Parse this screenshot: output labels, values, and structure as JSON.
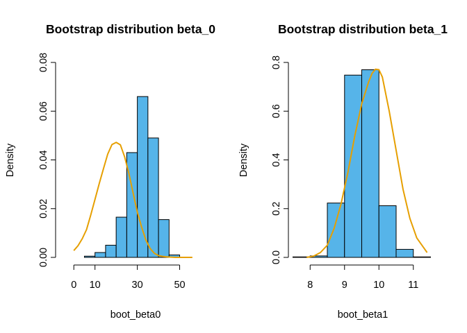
{
  "chart_data": [
    {
      "type": "bar",
      "title": "Bootstrap distribution beta_0",
      "xlabel": "boot_beta0",
      "ylabel": "Density",
      "xlim": [
        -5,
        60
      ],
      "ylim": [
        0,
        0.08
      ],
      "x_ticks": [
        0,
        10,
        30,
        50
      ],
      "x_tick_labels": [
        "0",
        "10",
        "30",
        "50"
      ],
      "y_ticks": [
        0.0,
        0.02,
        0.04,
        0.06,
        0.08
      ],
      "y_tick_labels": [
        "0.00",
        "0.02",
        "0.04",
        "0.06",
        "0.08"
      ],
      "bins": [
        {
          "x0": 5,
          "x1": 10,
          "density": 0.0005
        },
        {
          "x0": 10,
          "x1": 15,
          "density": 0.002
        },
        {
          "x0": 15,
          "x1": 20,
          "density": 0.005
        },
        {
          "x0": 20,
          "x1": 25,
          "density": 0.0165
        },
        {
          "x0": 25,
          "x1": 30,
          "density": 0.043
        },
        {
          "x0": 30,
          "x1": 35,
          "density": 0.066
        },
        {
          "x0": 35,
          "x1": 40,
          "density": 0.049
        },
        {
          "x0": 40,
          "x1": 45,
          "density": 0.0155
        },
        {
          "x0": 45,
          "x1": 50,
          "density": 0.001
        }
      ],
      "curve": {
        "x": [
          0,
          2,
          4,
          6,
          8,
          10,
          12,
          14,
          16,
          18,
          20,
          22,
          24,
          26,
          28,
          30,
          32,
          34,
          36,
          38,
          40,
          42,
          44,
          46,
          48,
          50,
          52,
          54,
          56
        ],
        "y": [
          0.0028,
          0.0048,
          0.0077,
          0.0114,
          0.0174,
          0.0238,
          0.0303,
          0.0364,
          0.0424,
          0.0463,
          0.0472,
          0.0462,
          0.0413,
          0.0345,
          0.0265,
          0.0186,
          0.0125,
          0.0072,
          0.0037,
          0.0017,
          0.0007,
          0.0004,
          0.0002,
          0.0001,
          0.0,
          0.0,
          0.0,
          0.0,
          0.0
        ]
      }
    },
    {
      "type": "bar",
      "title": "Bootstrap distribution beta_1",
      "xlabel": "boot_beta1",
      "ylabel": "Density",
      "xlim": [
        7.55,
        11.55
      ],
      "ylim": [
        0,
        0.8
      ],
      "x_ticks": [
        8,
        9,
        10,
        11
      ],
      "x_tick_labels": [
        "8",
        "9",
        "10",
        "11"
      ],
      "y_ticks": [
        0.0,
        0.2,
        0.4,
        0.6,
        0.8
      ],
      "y_tick_labels": [
        "0.0",
        "0.2",
        "0.4",
        "0.6",
        "0.8"
      ],
      "bins": [
        {
          "x0": 7.5,
          "x1": 8.0,
          "density": 0.002
        },
        {
          "x0": 8.0,
          "x1": 8.5,
          "density": 0.006
        },
        {
          "x0": 8.5,
          "x1": 9.0,
          "density": 0.223
        },
        {
          "x0": 9.0,
          "x1": 9.5,
          "density": 0.748
        },
        {
          "x0": 9.5,
          "x1": 10.0,
          "density": 0.77
        },
        {
          "x0": 10.0,
          "x1": 10.5,
          "density": 0.212
        },
        {
          "x0": 10.5,
          "x1": 11.0,
          "density": 0.033
        },
        {
          "x0": 11.0,
          "x1": 11.5,
          "density": 0.002
        }
      ],
      "curve": {
        "x": [
          7.9,
          8.1,
          8.3,
          8.5,
          8.7,
          8.9,
          9.1,
          9.3,
          9.5,
          9.7,
          9.8,
          9.9,
          10.0,
          10.1,
          10.3,
          10.5,
          10.7,
          10.9,
          11.1,
          11.3,
          11.4
        ],
        "y": [
          0.0,
          0.005,
          0.02,
          0.05,
          0.12,
          0.22,
          0.35,
          0.5,
          0.63,
          0.72,
          0.755,
          0.772,
          0.77,
          0.74,
          0.6,
          0.44,
          0.28,
          0.16,
          0.08,
          0.04,
          0.02
        ]
      }
    }
  ]
}
